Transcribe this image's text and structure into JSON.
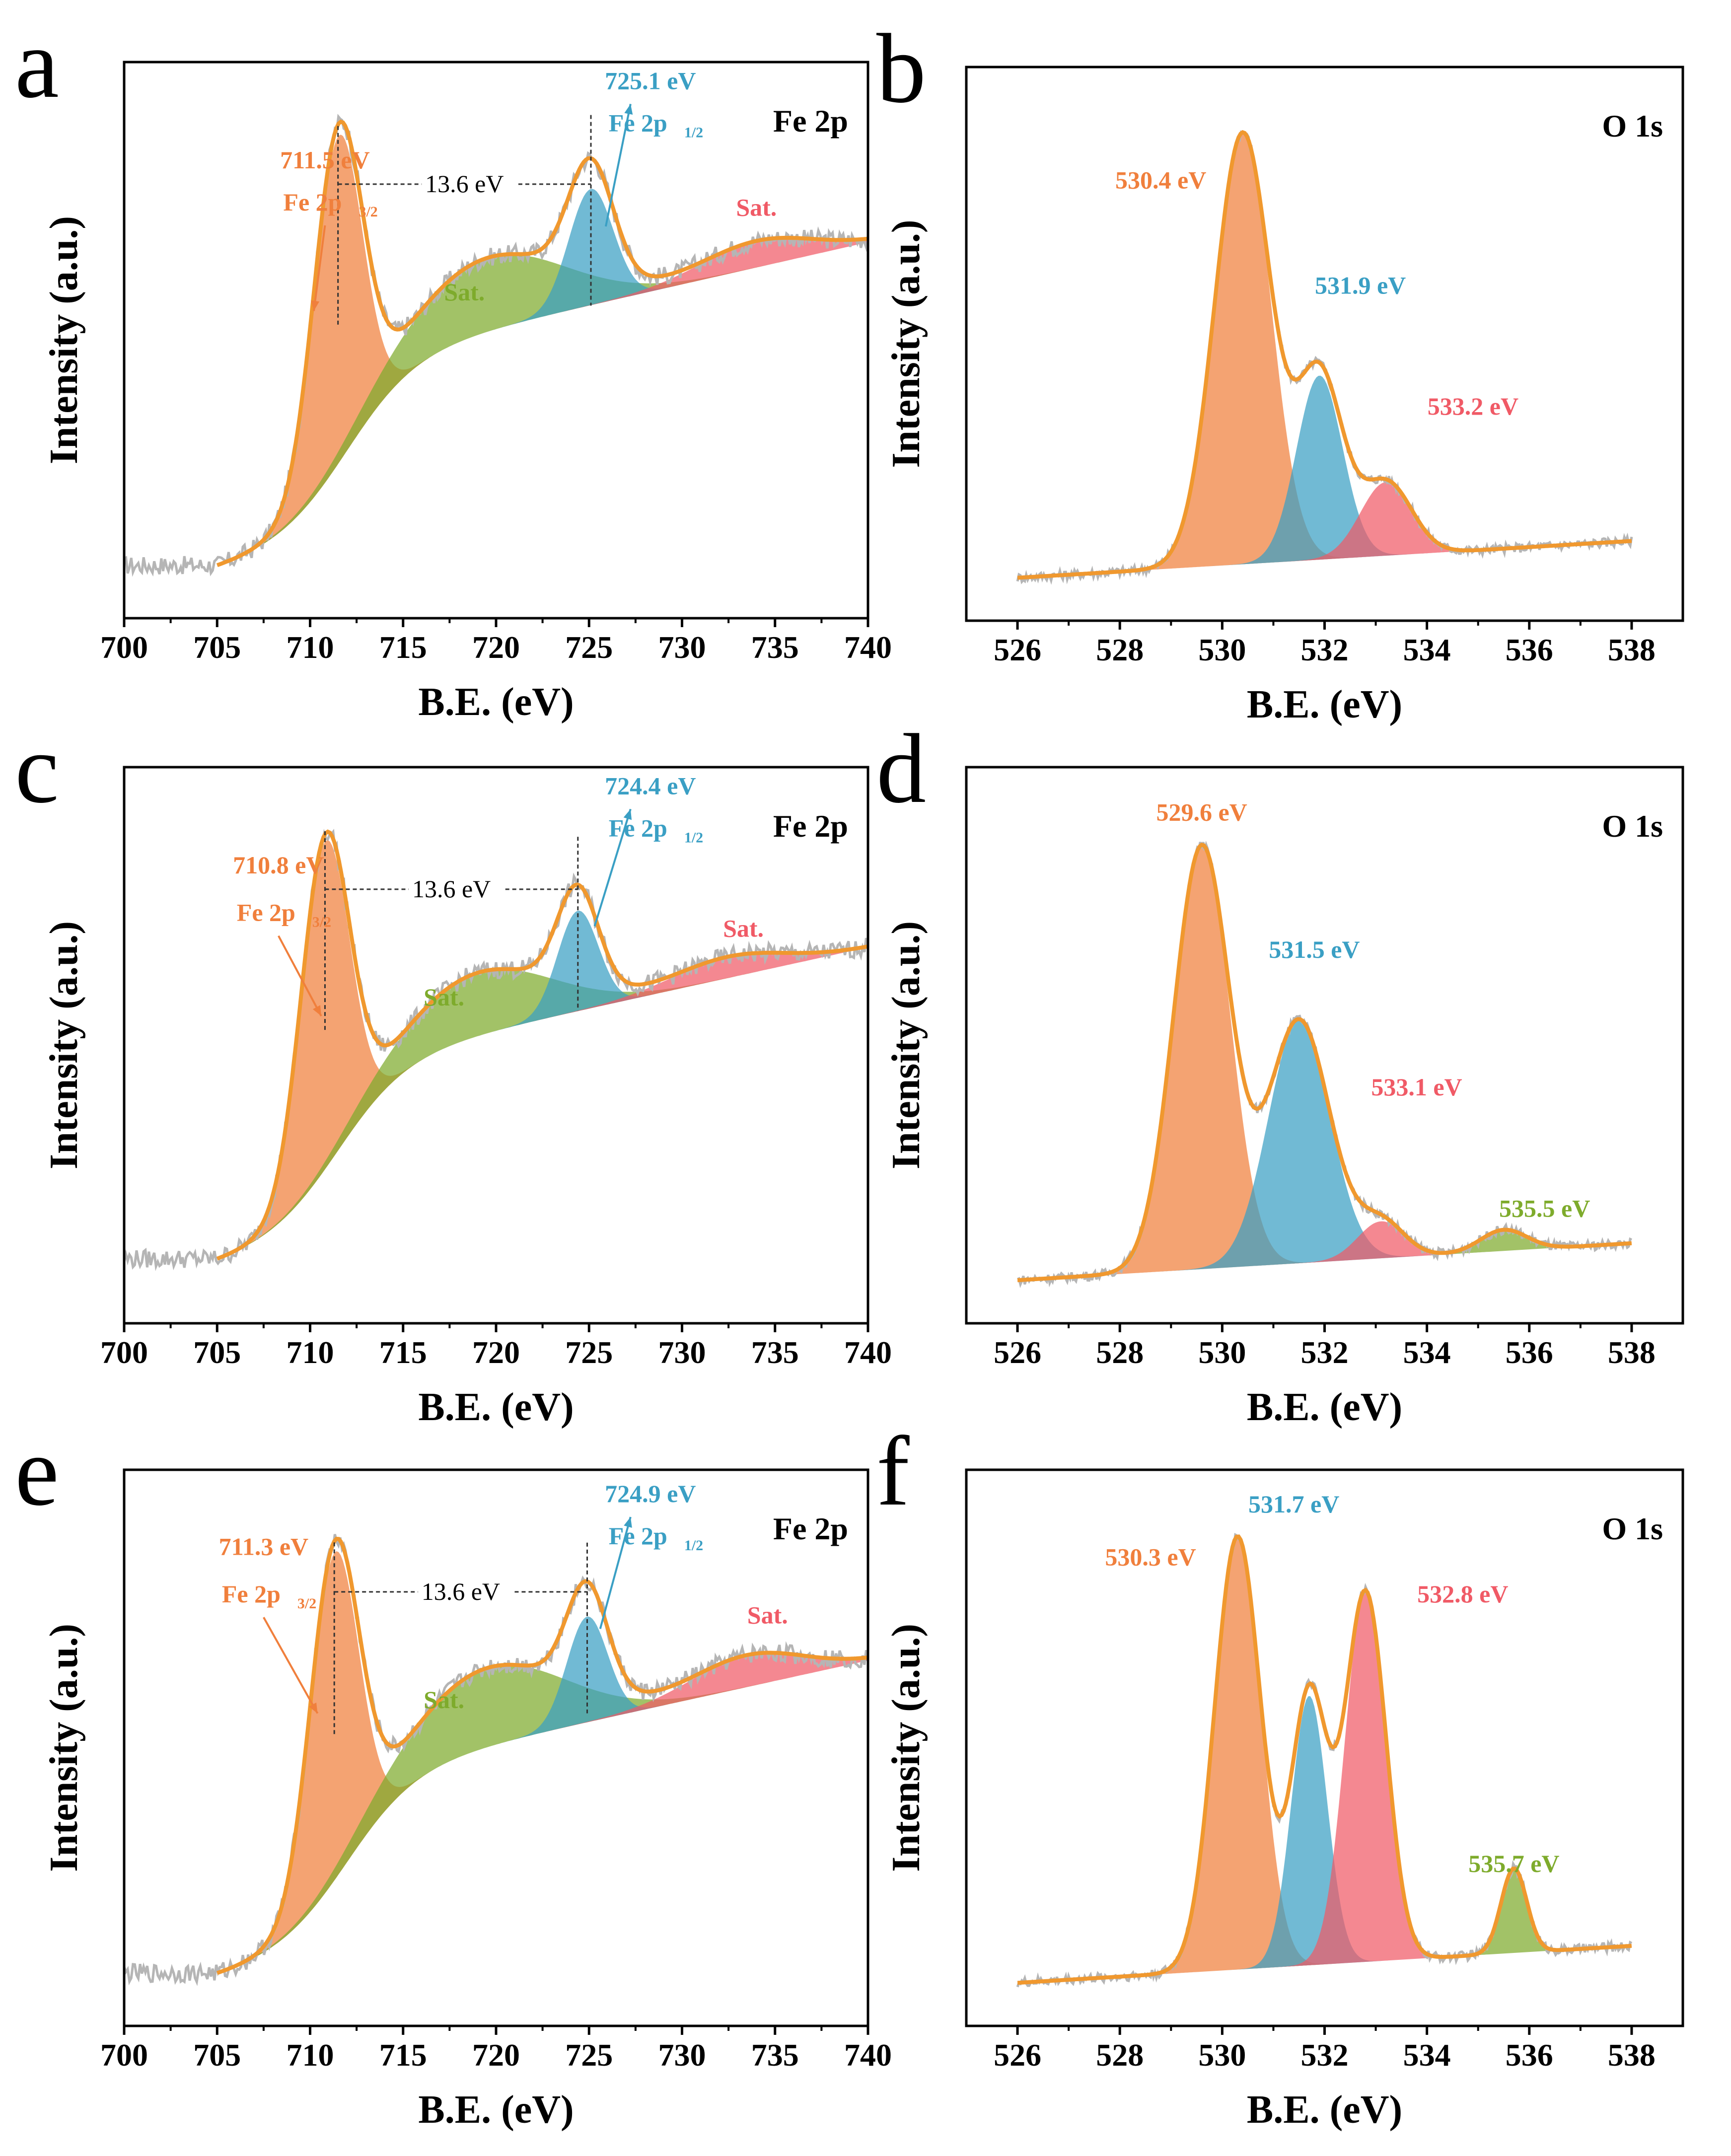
{
  "colors": {
    "orange": "#f07f3c",
    "blue": "#3a9fc4",
    "green": "#7eab2c",
    "red": "#f05a66",
    "raw": "#b5b5b5",
    "envelope": "#f0982e"
  },
  "chart_data": [
    {
      "id": "a",
      "panel_letter": "a",
      "type": "line",
      "title": "Fe 2p",
      "xlabel": "B.E. (eV)",
      "ylabel": "Intensity (a.u.)",
      "xlim": [
        700,
        740
      ],
      "xticks": [
        "700",
        "705",
        "710",
        "715",
        "720",
        "725",
        "730",
        "735",
        "740"
      ],
      "split_label": "13.6 eV",
      "peaks": [
        {
          "name": "Fe 2p3/2",
          "center": 711.5,
          "color": "orange",
          "value_label": "711.5 eV",
          "name_label": "Fe 2p",
          "subscript": "3/2"
        },
        {
          "name": "Sat.",
          "center": 719.5,
          "color": "green",
          "label": "Sat."
        },
        {
          "name": "Fe 2p1/2",
          "center": 725.1,
          "color": "blue",
          "value_label": "725.1 eV",
          "name_label": "Fe 2p",
          "subscript": "1/2"
        },
        {
          "name": "Sat.",
          "center": 734.0,
          "color": "red",
          "label": "Sat."
        }
      ]
    },
    {
      "id": "b",
      "panel_letter": "b",
      "type": "line",
      "title": "O 1s",
      "xlabel": "B.E. (eV)",
      "ylabel": "Intensity (a.u.)",
      "xlim": [
        525,
        539
      ],
      "xticks": [
        "526",
        "528",
        "530",
        "532",
        "534",
        "536",
        "538"
      ],
      "peaks": [
        {
          "center": 530.4,
          "color": "orange",
          "label": "530.4 eV"
        },
        {
          "center": 531.9,
          "color": "blue",
          "label": "531.9 eV"
        },
        {
          "center": 533.2,
          "color": "red",
          "label": "533.2 eV"
        }
      ]
    },
    {
      "id": "c",
      "panel_letter": "c",
      "type": "line",
      "title": "Fe 2p",
      "xlabel": "B.E. (eV)",
      "ylabel": "Intensity (a.u.)",
      "xlim": [
        700,
        740
      ],
      "xticks": [
        "700",
        "705",
        "710",
        "715",
        "720",
        "725",
        "730",
        "735",
        "740"
      ],
      "split_label": "13.6 eV",
      "peaks": [
        {
          "name": "Fe 2p3/2",
          "center": 710.8,
          "color": "orange",
          "value_label": "710.8 eV",
          "name_label": "Fe 2p",
          "subscript": "3/2"
        },
        {
          "name": "Sat.",
          "center": 719.0,
          "color": "green",
          "label": "Sat."
        },
        {
          "name": "Fe 2p1/2",
          "center": 724.4,
          "color": "blue",
          "value_label": "724.4 eV",
          "name_label": "Fe 2p",
          "subscript": "1/2"
        },
        {
          "name": "Sat.",
          "center": 732.5,
          "color": "red",
          "label": "Sat."
        }
      ]
    },
    {
      "id": "d",
      "panel_letter": "d",
      "type": "line",
      "title": "O 1s",
      "xlabel": "B.E. (eV)",
      "ylabel": "Intensity (a.u.)",
      "xlim": [
        525,
        539
      ],
      "xticks": [
        "526",
        "528",
        "530",
        "532",
        "534",
        "536",
        "538"
      ],
      "peaks": [
        {
          "center": 529.6,
          "color": "orange",
          "label": "529.6 eV"
        },
        {
          "center": 531.5,
          "color": "blue",
          "label": "531.5 eV"
        },
        {
          "center": 533.1,
          "color": "red",
          "label": "533.1 eV"
        },
        {
          "center": 535.5,
          "color": "green",
          "label": "535.5 eV"
        }
      ]
    },
    {
      "id": "e",
      "panel_letter": "e",
      "type": "line",
      "title": "Fe 2p",
      "xlabel": "B.E. (eV)",
      "ylabel": "Intensity (a.u.)",
      "xlim": [
        700,
        740
      ],
      "xticks": [
        "700",
        "705",
        "710",
        "715",
        "720",
        "725",
        "730",
        "735",
        "740"
      ],
      "split_label": "13.6 eV",
      "peaks": [
        {
          "name": "Fe 2p3/2",
          "center": 711.3,
          "color": "orange",
          "value_label": "711.3 eV",
          "name_label": "Fe 2p",
          "subscript": "3/2"
        },
        {
          "name": "Sat.",
          "center": 719.5,
          "color": "green",
          "label": "Sat."
        },
        {
          "name": "Fe 2p1/2",
          "center": 724.9,
          "color": "blue",
          "value_label": "724.9 eV",
          "name_label": "Fe 2p",
          "subscript": "1/2"
        },
        {
          "name": "Sat.",
          "center": 733.5,
          "color": "red",
          "label": "Sat."
        }
      ]
    },
    {
      "id": "f",
      "panel_letter": "f",
      "type": "line",
      "title": "O 1s",
      "xlabel": "B.E. (eV)",
      "ylabel": "Intensity (a.u.)",
      "xlim": [
        525,
        539
      ],
      "xticks": [
        "526",
        "528",
        "530",
        "532",
        "534",
        "536",
        "538"
      ],
      "peaks": [
        {
          "center": 530.3,
          "color": "orange",
          "label": "530.3 eV"
        },
        {
          "center": 531.7,
          "color": "blue",
          "label": "531.7 eV"
        },
        {
          "center": 532.8,
          "color": "red",
          "label": "532.8 eV"
        },
        {
          "center": 535.7,
          "color": "green",
          "label": "535.7 eV"
        }
      ]
    }
  ]
}
